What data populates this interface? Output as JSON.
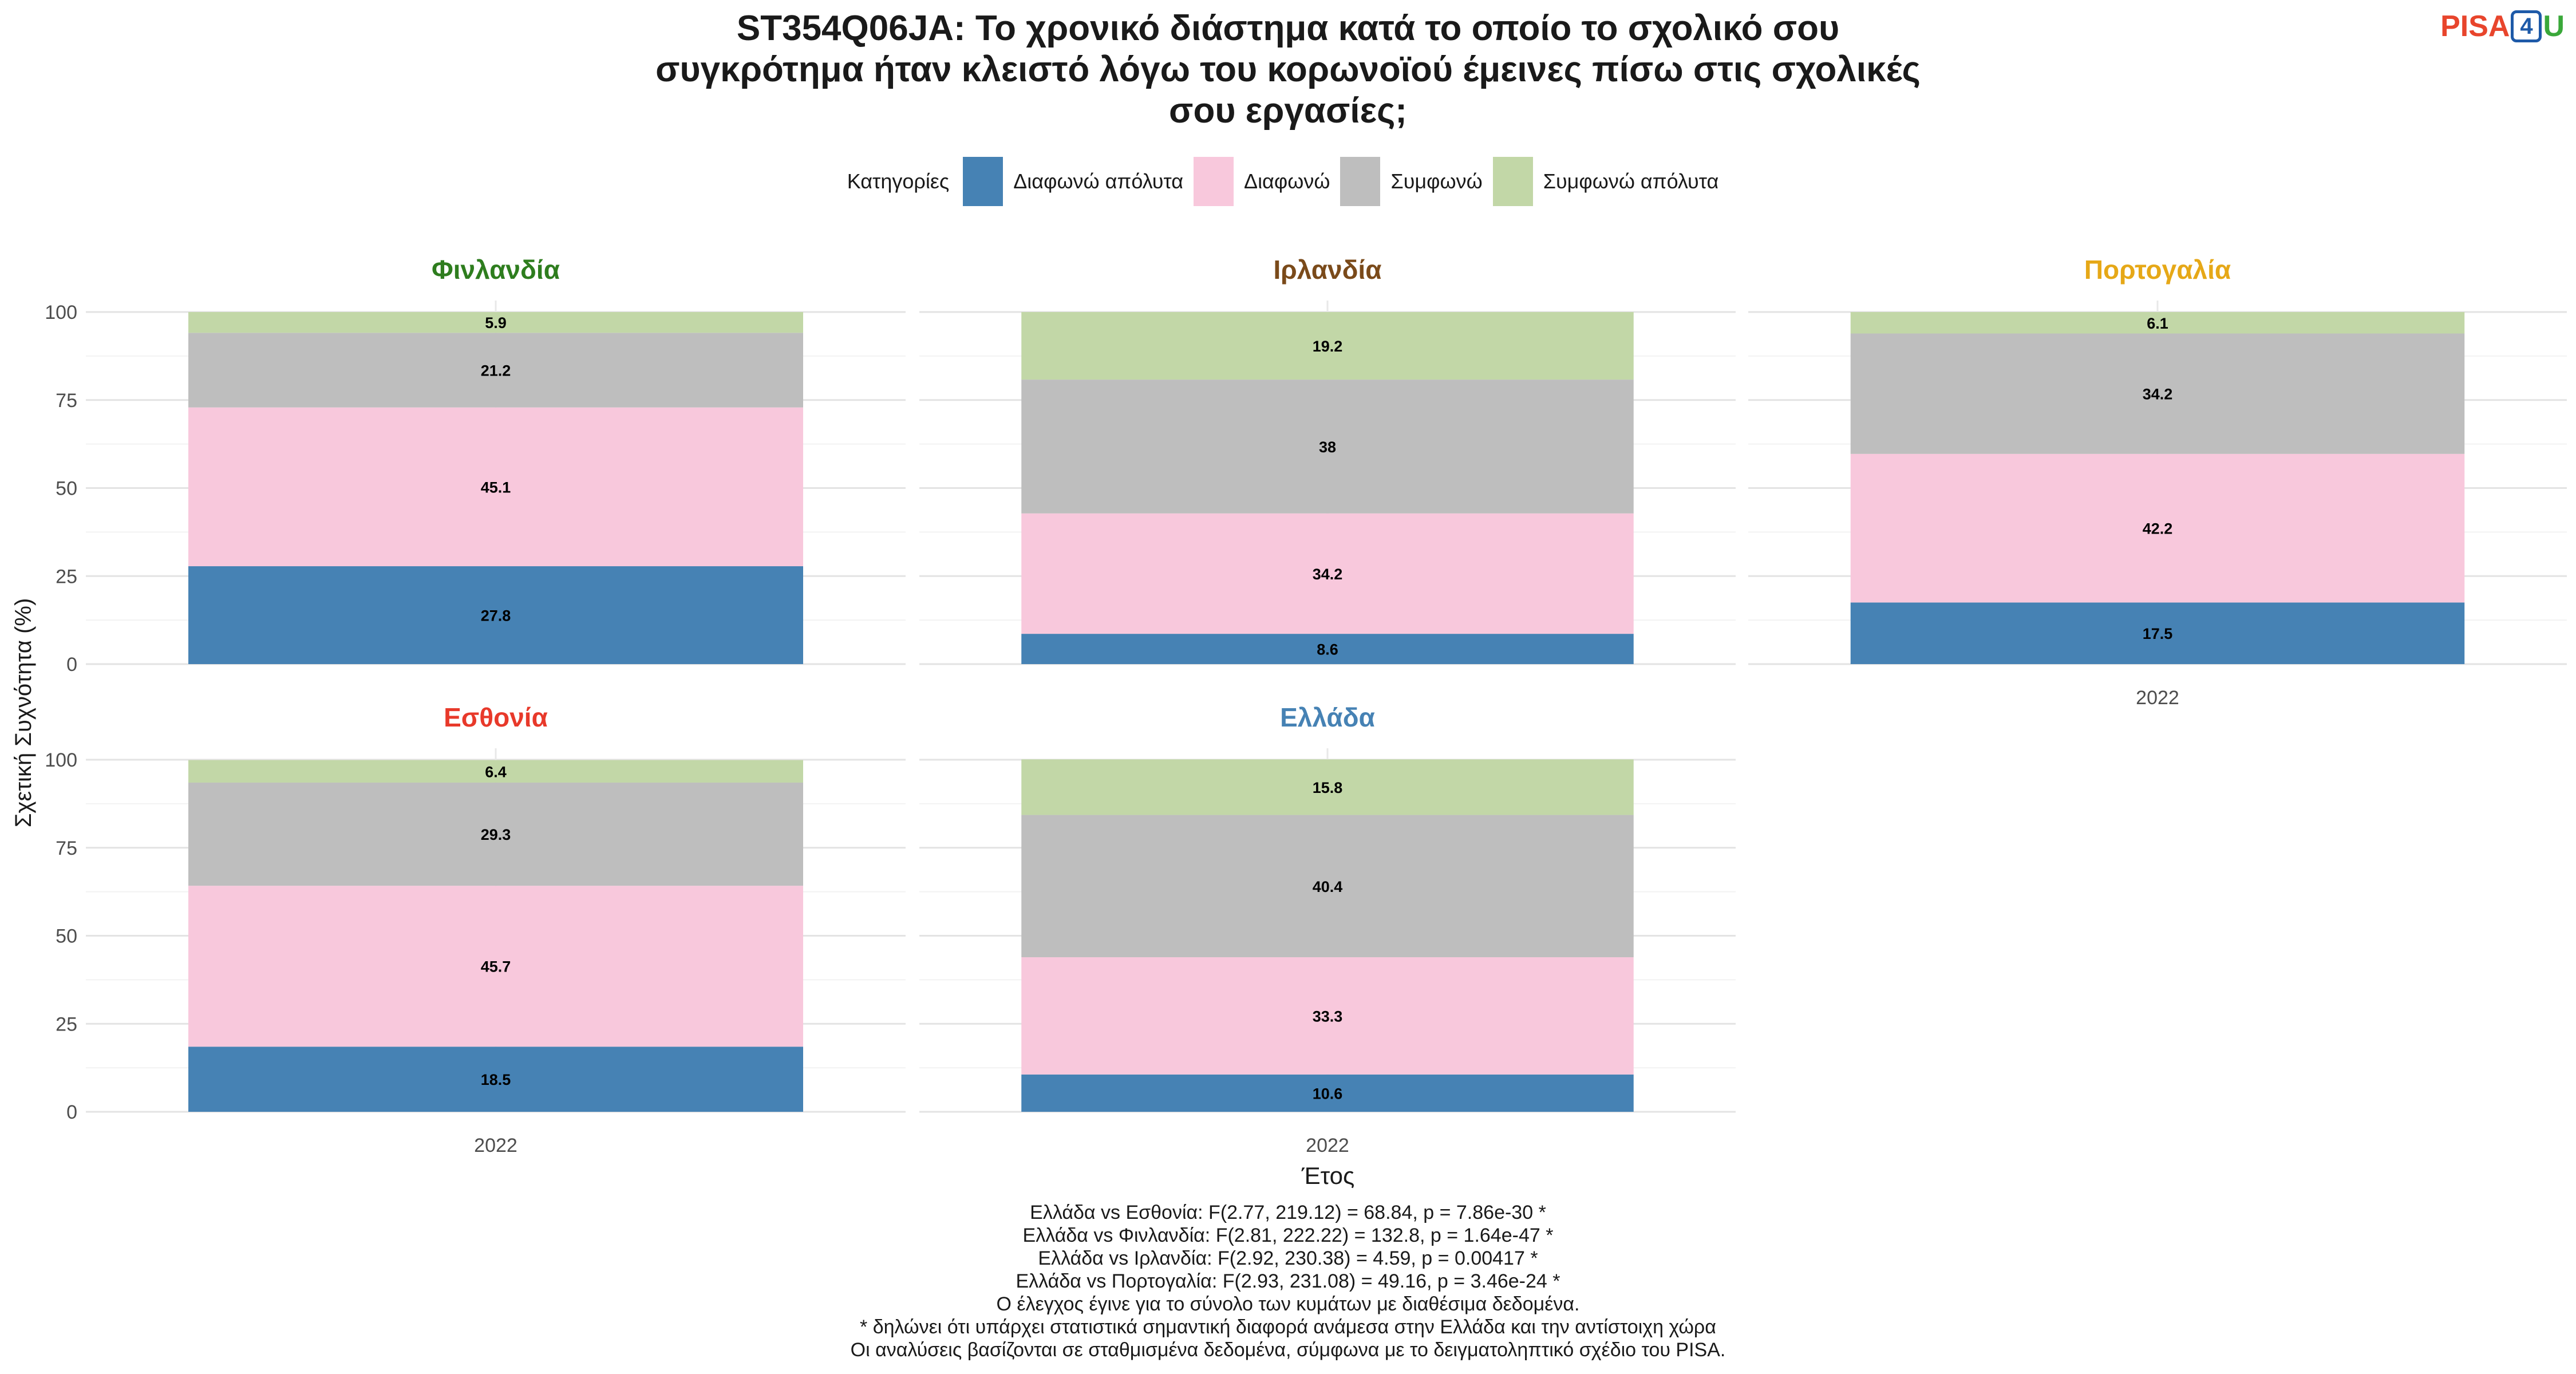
{
  "chart_data": {
    "type": "bar",
    "stacked": true,
    "title_lines": [
      "ST354Q06JA: Το χρονικό διάστημα κατά το οποίο το σχολικό σου",
      "συγκρότημα ήταν κλειστό λόγω του κορωνοϊού έμεινες πίσω στις σχολικές",
      "σου εργασίες;"
    ],
    "xlabel": "Έτος",
    "ylabel": "Σχετική Συχνότητα (%)",
    "ylim": [
      0,
      100
    ],
    "yticks": [
      "0",
      "25",
      "50",
      "75",
      "100"
    ],
    "grid": true,
    "legend": {
      "title": "Κατηγορίες",
      "position": "top",
      "items": [
        {
          "label": "Διαφωνώ απόλυτα",
          "color": "#4682b4"
        },
        {
          "label": "Διαφωνώ",
          "color": "#f8c8dc"
        },
        {
          "label": "Συμφωνώ",
          "color": "#bebebe"
        },
        {
          "label": "Συμφωνώ απόλυτα",
          "color": "#c2d7a7"
        }
      ]
    },
    "panels": [
      {
        "name": "Φινλανδία",
        "color": "#2e7d1e",
        "category": "2022",
        "values": [
          27.8,
          45.1,
          21.2,
          5.9
        ],
        "labels": [
          "27.8",
          "45.1",
          "21.2",
          "5.9"
        ]
      },
      {
        "name": "Ιρλανδία",
        "color": "#7a4a1a",
        "category": "2022",
        "values": [
          8.6,
          34.2,
          38,
          19.2
        ],
        "labels": [
          "8.6",
          "34.2",
          "38",
          "19.2"
        ]
      },
      {
        "name": "Πορτογαλία",
        "color": "#e6a817",
        "category": "2022",
        "values": [
          17.5,
          42.2,
          34.2,
          6.1
        ],
        "labels": [
          "17.5",
          "42.2",
          "34.2",
          "6.1"
        ]
      },
      {
        "name": "Εσθονία",
        "color": "#e8392a",
        "category": "2022",
        "values": [
          18.5,
          45.7,
          29.3,
          6.4
        ],
        "labels": [
          "18.5",
          "45.7",
          "29.3",
          "6.4"
        ]
      },
      {
        "name": "Ελλάδα",
        "color": "#4682b4",
        "category": "2022",
        "values": [
          10.6,
          33.3,
          40.4,
          15.8
        ],
        "labels": [
          "10.6",
          "33.3",
          "40.4",
          "15.8"
        ]
      }
    ]
  },
  "logo": {
    "part1": "PISA",
    "part2": "4",
    "part3": "U"
  },
  "notes": [
    "Ελλάδα vs Εσθονία: F(2.77, 219.12) = 68.84, p = 7.86e-30 *",
    "Ελλάδα vs Φινλανδία: F(2.81, 222.22) = 132.8, p = 1.64e-47 *",
    "Ελλάδα vs Ιρλανδία: F(2.92, 230.38) = 4.59, p = 0.00417 *",
    "Ελλάδα vs Πορτογαλία: F(2.93, 231.08) = 49.16, p = 3.46e-24 *",
    "Ο έλεγχος έγινε για το σύνολο των κυμάτων με διαθέσιμα δεδομένα.",
    "* δηλώνει ότι υπάρχει στατιστικά σημαντική διαφορά ανάμεσα στην Ελλάδα και την αντίστοιχη χώρα",
    "Οι αναλύσεις βασίζονται σε σταθμισμένα δεδομένα, σύμφωνα με το δειγματοληπτικό σχέδιο του PISA."
  ]
}
